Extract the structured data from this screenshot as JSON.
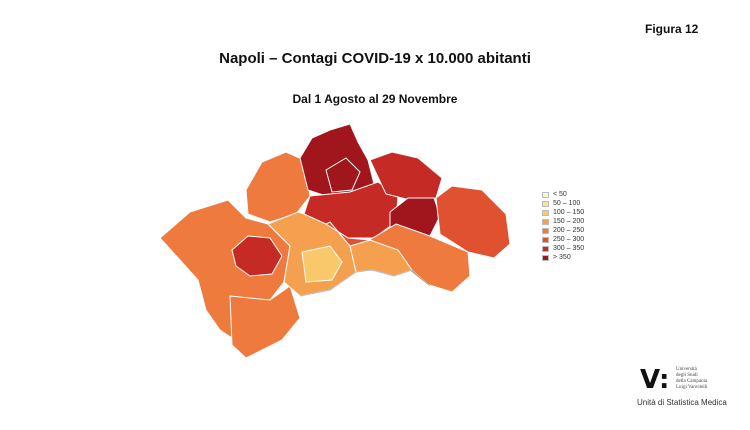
{
  "figure_label": "Figura  12",
  "title": "Napoli – Contagi COVID-19 x 10.000 abitanti",
  "subtitle": "Dal 1 Agosto al 29 Novembre",
  "legend": [
    {
      "label": "< 50",
      "color": "#fdf6c9"
    },
    {
      "label": "50 – 100",
      "color": "#fbe39a"
    },
    {
      "label": "100 – 150",
      "color": "#f9c86a"
    },
    {
      "label": "150 – 200",
      "color": "#f5a04f"
    },
    {
      "label": "200 – 250",
      "color": "#ee7a3d"
    },
    {
      "label": "250 – 300",
      "color": "#e0512f"
    },
    {
      "label": "300 – 350",
      "color": "#c62a25"
    },
    {
      "label": "> 350",
      "color": "#a1151c"
    }
  ],
  "logo": {
    "mark": "V:",
    "text_lines": [
      "Università",
      "degli Studi",
      "della Campania",
      "Luigi Vanvitelli"
    ],
    "caption": "Unità di Statistica Medica"
  }
}
